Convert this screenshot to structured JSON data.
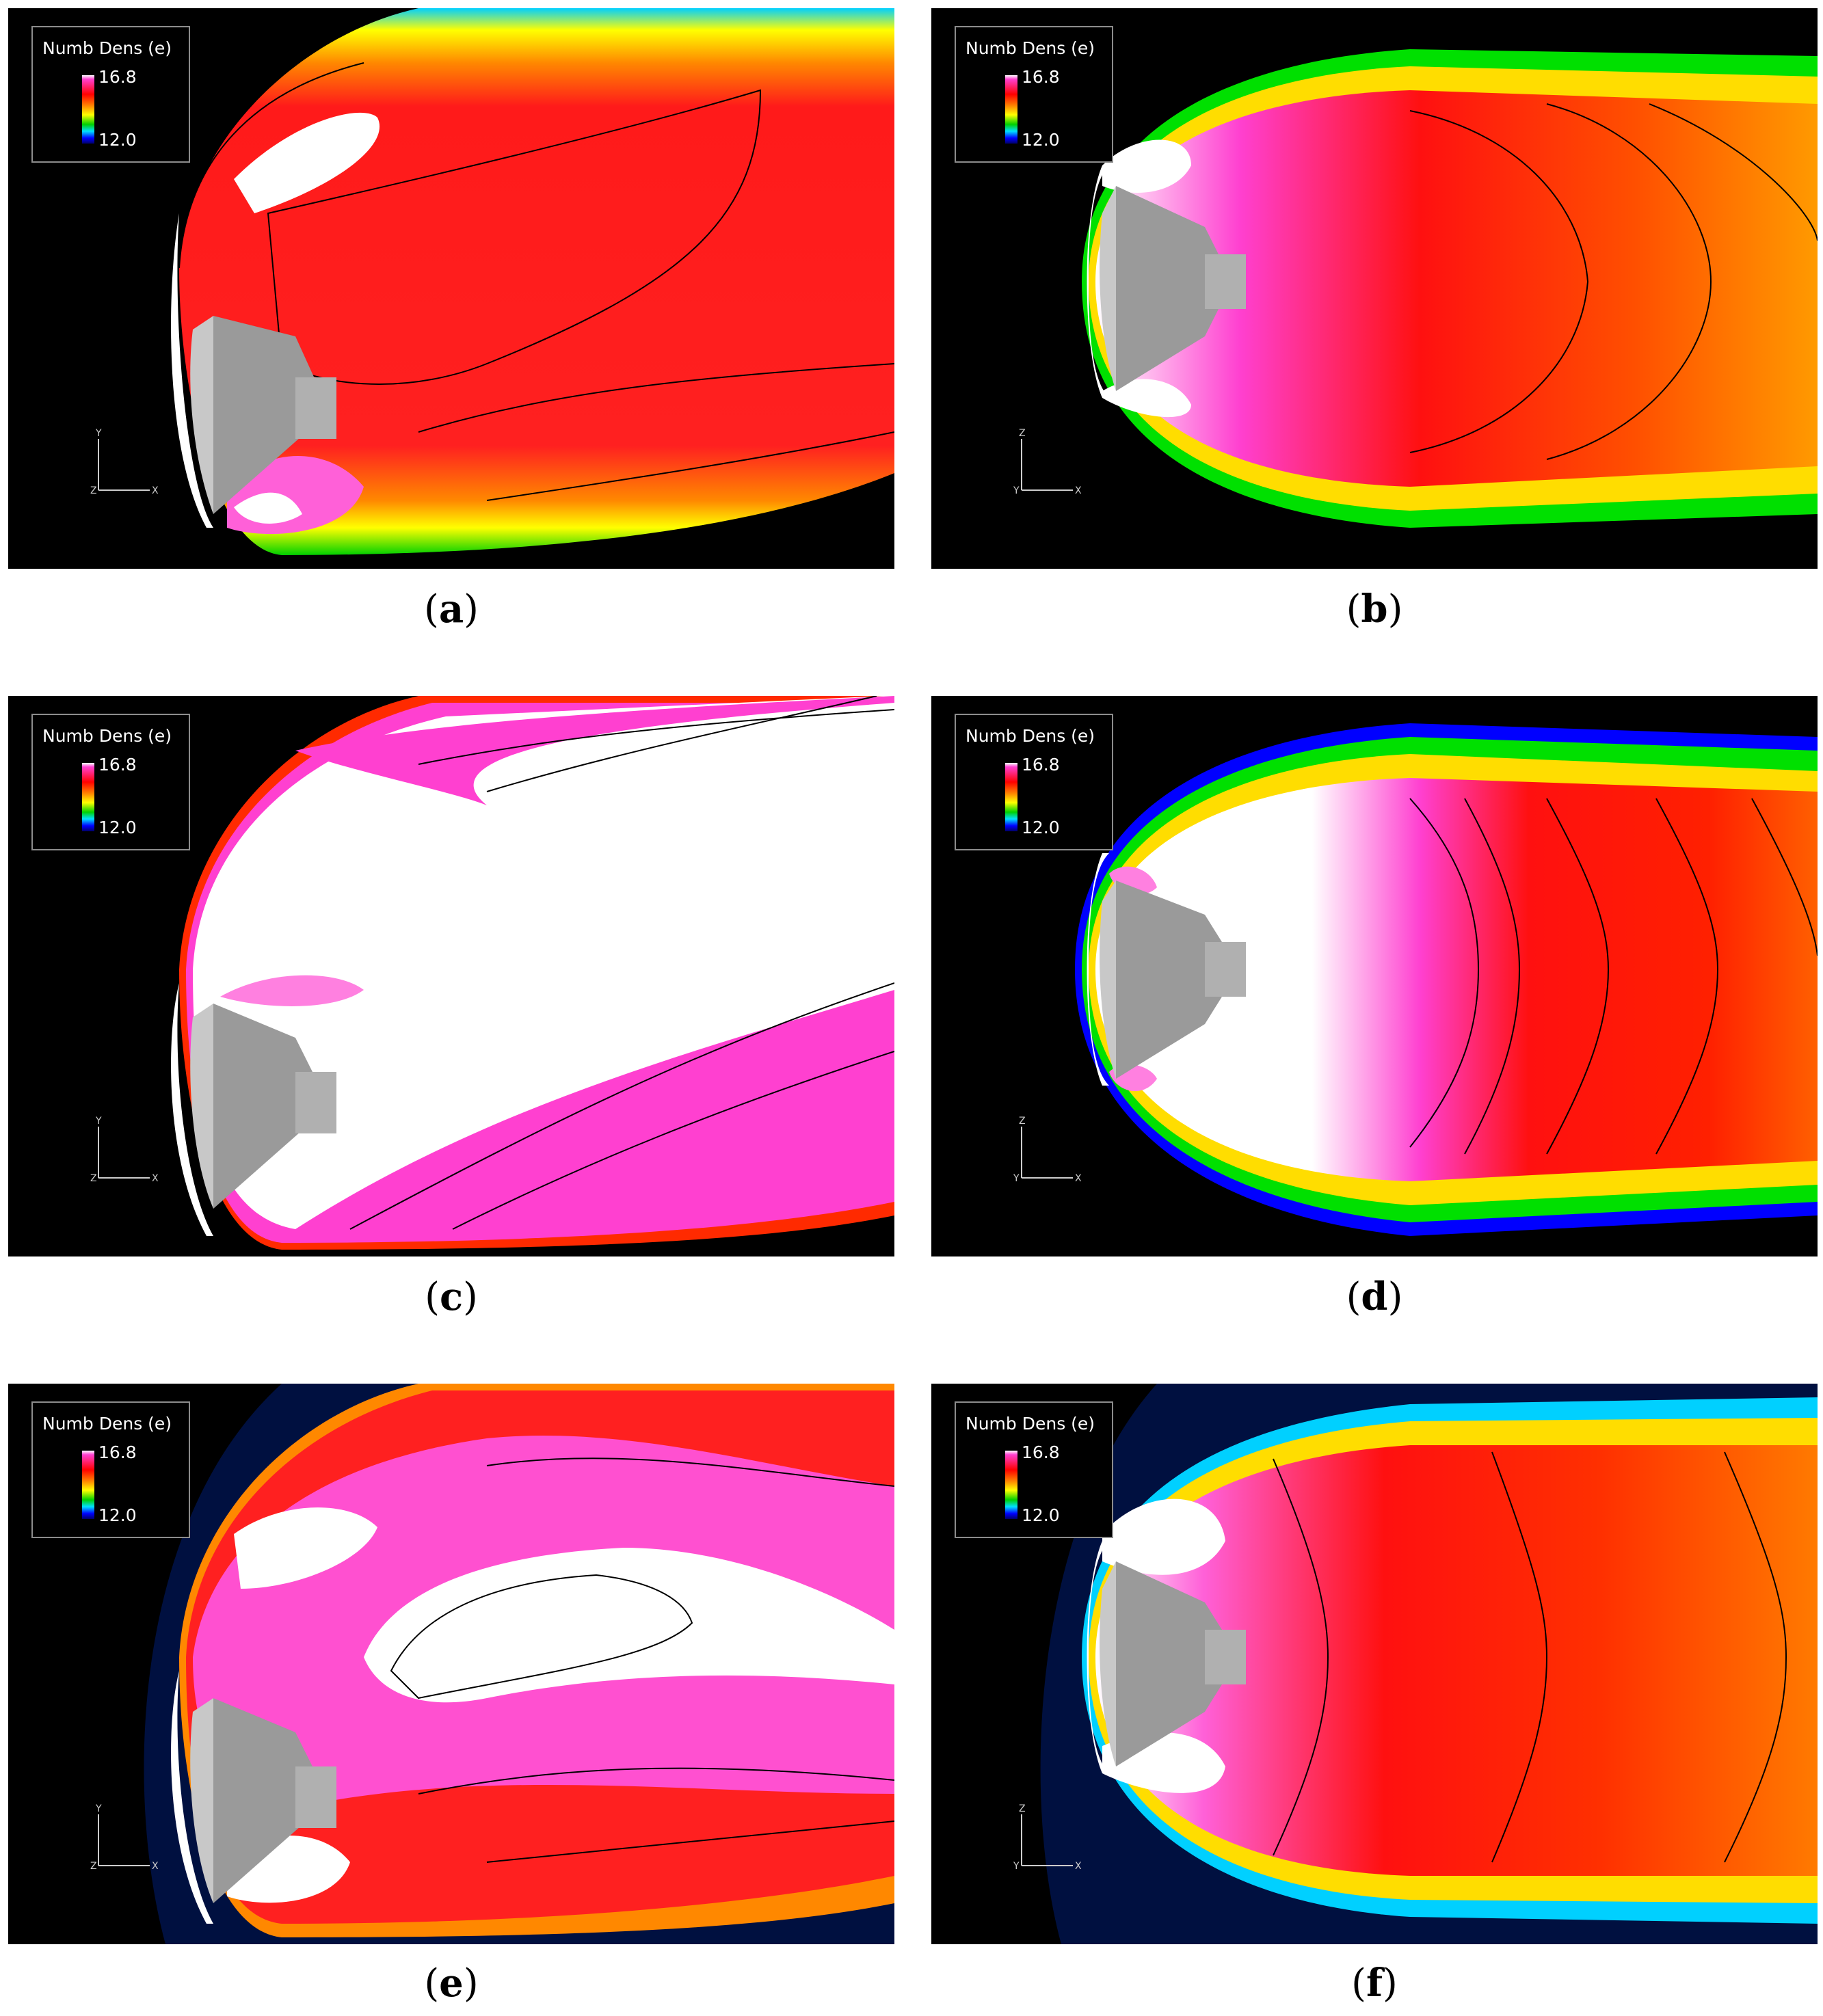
{
  "figure": {
    "panels": [
      {
        "id": "a",
        "caption_letter": "a",
        "legend_title": "Numb Dens (e)",
        "legend_max": "16.8",
        "legend_min": "12.0",
        "axis_up": "Y",
        "axis_right": "X",
        "axis_origin": "Z"
      },
      {
        "id": "b",
        "caption_letter": "b",
        "legend_title": "Numb Dens (e)",
        "legend_max": "16.8",
        "legend_min": "12.0",
        "axis_up": "Z",
        "axis_right": "X",
        "axis_origin": "Y"
      },
      {
        "id": "c",
        "caption_letter": "c",
        "legend_title": "Numb Dens (e)",
        "legend_max": "16.8",
        "legend_min": "12.0",
        "axis_up": "Y",
        "axis_right": "X",
        "axis_origin": "Z"
      },
      {
        "id": "d",
        "caption_letter": "d",
        "legend_title": "Numb Dens (e)",
        "legend_max": "16.8",
        "legend_min": "12.0",
        "axis_up": "Z",
        "axis_right": "X",
        "axis_origin": "Y"
      },
      {
        "id": "e",
        "caption_letter": "e",
        "legend_title": "Numb Dens (e)",
        "legend_max": "16.8",
        "legend_min": "12.0",
        "axis_up": "Y",
        "axis_right": "X",
        "axis_origin": "Z"
      },
      {
        "id": "f",
        "caption_letter": "f",
        "legend_title": "Numb Dens (e)",
        "legend_max": "16.8",
        "legend_min": "12.0",
        "axis_up": "Z",
        "axis_right": "X",
        "axis_origin": "Y"
      }
    ],
    "captions": [
      "(a)",
      "(b)",
      "(c)",
      "(d)",
      "(e)",
      "(f)"
    ]
  },
  "colormap": {
    "high": "#ffffff",
    "pink": "#ff40d0",
    "red": "#ff0000",
    "orange": "#ff8800",
    "yellow": "#ffff00",
    "green": "#00d000",
    "cyan": "#00e0ff",
    "blue": "#0000ff",
    "background": "#000000"
  }
}
